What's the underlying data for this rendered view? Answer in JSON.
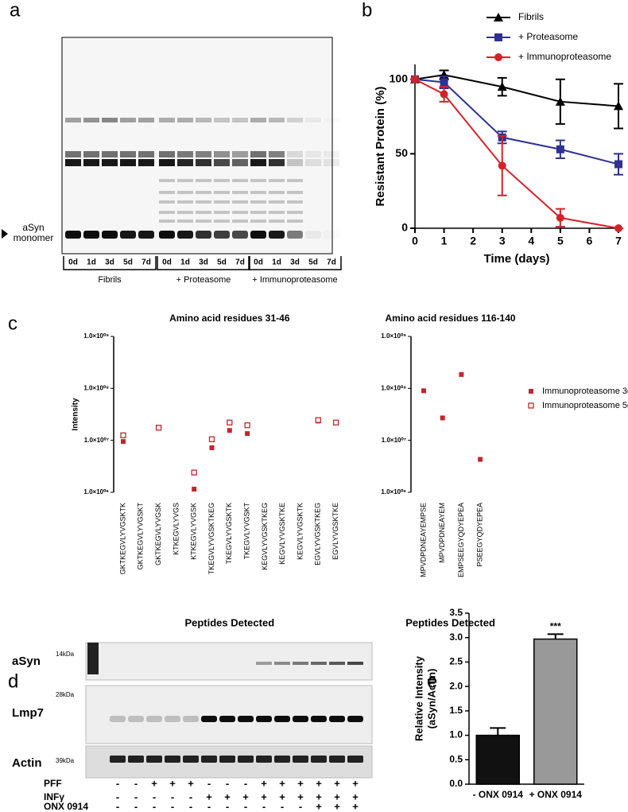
{
  "panel_labels": [
    "a",
    "b",
    "c",
    "d",
    "e"
  ],
  "blot_a": {
    "marker": [
      "aSyn",
      "monomer"
    ],
    "groups": [
      {
        "name": "Fibrils",
        "lanes": [
          "0d",
          "1d",
          "3d",
          "5d",
          "7d"
        ]
      },
      {
        "name": "+ Proteasome",
        "lanes": [
          "0d",
          "1d",
          "3d",
          "5d",
          "7d"
        ]
      },
      {
        "name": "+ Immunoproteasome",
        "lanes": [
          "0d",
          "1d",
          "3d",
          "5d",
          "7d"
        ]
      }
    ]
  },
  "blot_d": {
    "rows": [
      {
        "name": "aSyn",
        "mw": "14kDa"
      },
      {
        "name": "Lmp7",
        "mw": "28kDa"
      },
      {
        "name": "Actin",
        "mw": "39kDa"
      }
    ],
    "conditions": [
      {
        "name": "PFF",
        "signs": [
          "-",
          "-",
          "+",
          "+",
          "+",
          "-",
          "-",
          "-",
          "+",
          "+",
          "+",
          "+",
          "+",
          "+"
        ]
      },
      {
        "name": "INFγ",
        "signs": [
          "-",
          "-",
          "-",
          "-",
          "-",
          "+",
          "+",
          "+",
          "+",
          "+",
          "+",
          "+",
          "+",
          "+"
        ]
      },
      {
        "name": "ONX 0914",
        "signs": [
          "-",
          "-",
          "-",
          "-",
          "-",
          "-",
          "-",
          "-",
          "-",
          "-",
          "-",
          "+",
          "+",
          "+"
        ]
      }
    ]
  },
  "chart_data": [
    {
      "type": "line",
      "xlabel": "Time (days)",
      "ylabel": "Resistant Protein (%)",
      "x": [
        0,
        1,
        3,
        5,
        7
      ],
      "xlim": [
        0,
        7
      ],
      "xticks": [
        0,
        1,
        2,
        3,
        4,
        5,
        6,
        7
      ],
      "ylim": [
        0,
        110
      ],
      "yticks": [
        0,
        50,
        100
      ],
      "legend": "upper right",
      "series": [
        {
          "name": "Fibrils",
          "color": "#000000",
          "marker": "triangle",
          "values": [
            100,
            103,
            95,
            85,
            82
          ],
          "errors": [
            0,
            3,
            6,
            15,
            15
          ]
        },
        {
          "name": "+ Proteasome",
          "color": "#2e3192",
          "marker": "square",
          "values": [
            100,
            98,
            61,
            53,
            43
          ],
          "errors": [
            0,
            4,
            4,
            6,
            7
          ]
        },
        {
          "name": "+ Immunoproteasome",
          "color": "#d2232a",
          "marker": "circle",
          "values": [
            100,
            90,
            42,
            7,
            0
          ],
          "errors": [
            0,
            5,
            20,
            6,
            0
          ]
        }
      ]
    },
    {
      "type": "scatter",
      "title": "Amino acid residues 31-46",
      "ylabel": "Intensity",
      "xlabel": "Peptides Detected",
      "log_y": true,
      "categories": [
        "GKTKEGVLYVGSKTK",
        "GKTKEGVLYVGSKT",
        "GKTKEGVLYVGSK",
        "KTKEGVLYVGS",
        "KTKEGVLYVGSK",
        "TKEGVLYVGSKTKEG",
        "TKEGVLYVGSKTK",
        "TKEGVLYVGSKT",
        "KEGVLYVGSKTKEG",
        "KEGVLYVGSKTKE",
        "KEGVLYVGSKTK",
        "EGVLYVGSKTKEG",
        "EGVLYVGSKTKE"
      ],
      "ylim": [
        1000000,
        1000000000
      ],
      "yticks": [
        {
          "value": 1000000,
          "label": "1.0×10⁰⁶"
        },
        {
          "value": 10000000,
          "label": "1.0×10⁰⁷"
        },
        {
          "value": 100000000,
          "label": "1.0×10⁰⁸"
        },
        {
          "value": 1000000000,
          "label": "1.0×10⁰⁹"
        }
      ],
      "series": [
        {
          "color": "#c1272d",
          "marker": "filled-square",
          "values": [
            9500000,
            null,
            null,
            null,
            1150000,
            7200000,
            15500000,
            13500000,
            null,
            null,
            null,
            23500000,
            22000000
          ]
        },
        {
          "color": "#c1272d",
          "marker": "open-square",
          "values": [
            12500000,
            null,
            17500000,
            null,
            2400000,
            10500000,
            22000000,
            19500000,
            null,
            null,
            null,
            24500000,
            22000000
          ]
        }
      ]
    },
    {
      "type": "scatter",
      "title": "Amino acid residues 116-140",
      "xlabel": "Peptides Detected",
      "log_y": true,
      "legend": "right",
      "categories": [
        "MPVDPDNEAYEMPSE",
        "MPVDPDNEAYEM",
        "EMPSEEGYQDYEPEA",
        "PSEEGYQDYEPEA"
      ],
      "ylim": [
        1000000,
        1000000000
      ],
      "yticks": [
        {
          "value": 1000000,
          "label": "1.0×10⁰⁶"
        },
        {
          "value": 10000000,
          "label": "1.0×10⁰⁷"
        },
        {
          "value": 100000000,
          "label": "1.0×10⁰⁸"
        },
        {
          "value": 1000000000,
          "label": "1.0×10⁰⁹"
        }
      ],
      "series": [
        {
          "name": "Immunoproteasome 3d",
          "color": "#c1272d",
          "marker": "filled-square",
          "values": [
            90000000,
            27000000,
            185000000,
            4300000
          ]
        },
        {
          "name": "Immunoproteasome 5d",
          "color": "#c1272d",
          "marker": "open-square",
          "values": [
            null,
            null,
            null,
            null
          ]
        }
      ]
    },
    {
      "type": "bar",
      "ylabel": [
        "Relative Intensity",
        "(aSyn/Actin)"
      ],
      "categories": [
        "- ONX 0914",
        "+ ONX 0914"
      ],
      "values": [
        1.0,
        2.97
      ],
      "errors": [
        0.15,
        0.1
      ],
      "colors": [
        "#111111",
        "#999999"
      ],
      "significance": [
        null,
        "***"
      ],
      "ylim": [
        0,
        3.5
      ],
      "yticks": [
        {
          "value": 0,
          "label": "0.0"
        },
        0.5,
        {
          "value": 1,
          "label": "1.0"
        },
        1.5,
        {
          "value": 2,
          "label": "2.0"
        },
        2.5,
        {
          "value": 3,
          "label": "3.0"
        },
        3.5
      ]
    }
  ]
}
